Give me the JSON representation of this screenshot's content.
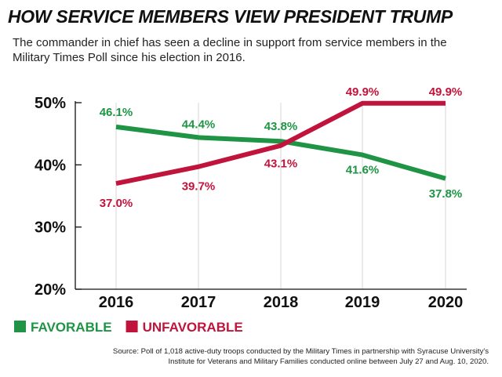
{
  "header": {
    "title": "HOW SERVICE MEMBERS VIEW PRESIDENT TRUMP",
    "subtitle": "The commander in chief has seen a decline in support from service members in the Military Times Poll since his election in 2016."
  },
  "source_note": "Source: Poll of 1,018 active-duty troops conducted by the Military Times in partnership with Syracuse University's Institute for Veterans and Military Families conducted online between July 27 and Aug. 10, 2020.",
  "chart_data": {
    "type": "line",
    "title": "HOW SERVICE MEMBERS VIEW PRESIDENT TRUMP",
    "xlabel": "",
    "ylabel": "",
    "categories": [
      "2016",
      "2017",
      "2018",
      "2019",
      "2020"
    ],
    "ylim": [
      20,
      50
    ],
    "y_ticks": [
      20,
      30,
      40,
      50
    ],
    "y_tick_labels": [
      "20%",
      "30%",
      "40%",
      "50%"
    ],
    "grid": "vertical",
    "legend_position": "bottom-left",
    "series": [
      {
        "name": "FAVORABLE",
        "color": "#1e9444",
        "values": [
          46.1,
          44.4,
          43.8,
          41.6,
          37.8
        ],
        "labels": [
          "46.1%",
          "44.4%",
          "43.8%",
          "41.6%",
          "37.8%"
        ]
      },
      {
        "name": "UNFAVORABLE",
        "color": "#c0143c",
        "values": [
          37.0,
          39.7,
          43.1,
          49.9,
          49.9
        ],
        "labels": [
          "37.0%",
          "39.7%",
          "43.1%",
          "49.9%",
          "49.9%"
        ]
      }
    ]
  }
}
